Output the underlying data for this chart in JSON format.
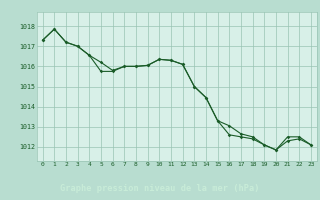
{
  "title": "Graphe pression niveau de la mer (hPa)",
  "fig_bg": "#b8ddd0",
  "plot_bg": "#d8f0e8",
  "grid_color": "#99c4b4",
  "line_color": "#1a5c28",
  "xlabel_bg": "#2a6e3a",
  "xlabel_fg": "#c8ecd8",
  "ylim": [
    1011.3,
    1018.7
  ],
  "yticks": [
    1012,
    1013,
    1014,
    1015,
    1016,
    1017,
    1018
  ],
  "x_labels": [
    "0",
    "1",
    "2",
    "3",
    "4",
    "5",
    "6",
    "7",
    "8",
    "9",
    "10",
    "11",
    "12",
    "13",
    "14",
    "15",
    "16",
    "17",
    "18",
    "19",
    "20",
    "21",
    "22",
    "23"
  ],
  "series1": [
    1017.3,
    1017.85,
    1017.2,
    1017.0,
    1016.55,
    1016.2,
    1015.8,
    1016.0,
    1016.0,
    1016.05,
    1016.35,
    1016.3,
    1016.1,
    1015.0,
    1014.45,
    1013.3,
    1013.05,
    1012.65,
    1012.5,
    1012.1,
    1011.85,
    1012.5,
    1012.5,
    1012.1
  ],
  "series2": [
    1017.3,
    1017.85,
    1017.2,
    1017.0,
    1016.55,
    1015.75,
    1015.75,
    1016.0,
    1016.0,
    1016.05,
    1016.35,
    1016.3,
    1016.1,
    1015.0,
    1014.45,
    1013.3,
    1012.6,
    1012.5,
    1012.4,
    1012.1,
    1011.85,
    1012.3,
    1012.4,
    1012.1
  ]
}
